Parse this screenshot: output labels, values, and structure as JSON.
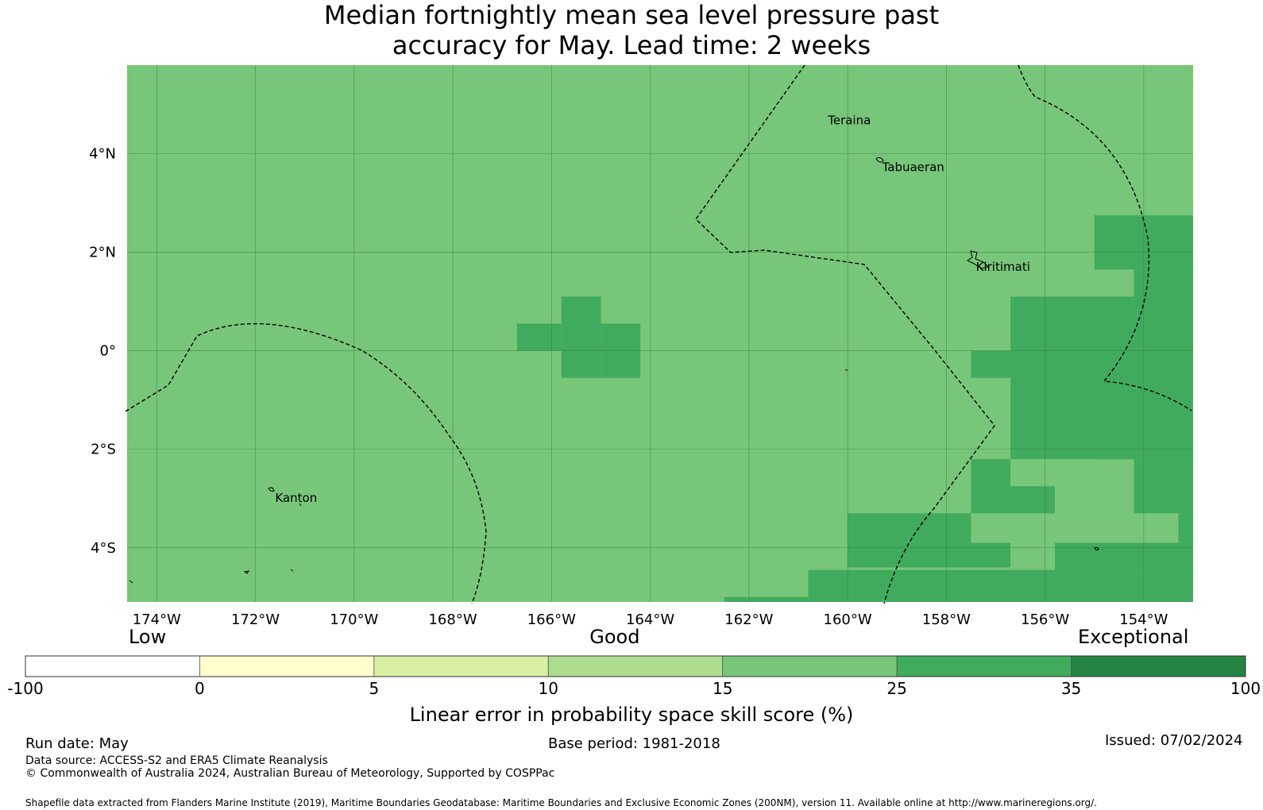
{
  "title": {
    "line1": "Median fortnightly mean sea level pressure past",
    "line2": "accuracy for May. Lead time: 2 weeks"
  },
  "map": {
    "lon_range": [
      -174.6,
      -153.0
    ],
    "lat_range": [
      -5.1,
      5.8
    ],
    "lon_ticks": [
      {
        "value": -174,
        "label": "174°W"
      },
      {
        "value": -172,
        "label": "172°W"
      },
      {
        "value": -170,
        "label": "170°W"
      },
      {
        "value": -168,
        "label": "168°W"
      },
      {
        "value": -166,
        "label": "166°W"
      },
      {
        "value": -164,
        "label": "164°W"
      },
      {
        "value": -162,
        "label": "162°W"
      },
      {
        "value": -160,
        "label": "160°W"
      },
      {
        "value": -158,
        "label": "158°W"
      },
      {
        "value": -156,
        "label": "156°W"
      },
      {
        "value": -154,
        "label": "154°W"
      }
    ],
    "lat_ticks": [
      {
        "value": 4,
        "label": "4°N"
      },
      {
        "value": 2,
        "label": "2°N"
      },
      {
        "value": 0,
        "label": "0°"
      },
      {
        "value": -2,
        "label": "2°S"
      },
      {
        "value": -4,
        "label": "4°S"
      }
    ],
    "background_color": "#78c679",
    "places": [
      {
        "name": "Teraina",
        "lon": -160.4,
        "lat": 4.6
      },
      {
        "name": "Tabuaeran",
        "lon": -159.3,
        "lat": 3.65
      },
      {
        "name": "Kiritimati",
        "lon": -157.4,
        "lat": 1.62
      },
      {
        "name": "Kanton",
        "lon": -171.6,
        "lat": -3.07
      }
    ],
    "high_skill_cells": [
      {
        "lon": [
          -166.7,
          -165.8
        ],
        "lat": [
          0.0,
          0.55
        ],
        "color": "#41ab5d"
      },
      {
        "lon": [
          -165.8,
          -165.0
        ],
        "lat": [
          -0.55,
          1.1
        ],
        "color": "#41ab5d"
      },
      {
        "lon": [
          -165.0,
          -164.2
        ],
        "lat": [
          -0.55,
          0.55
        ],
        "color": "#41ab5d"
      },
      {
        "lon": [
          -155.0,
          -153.0
        ],
        "lat": [
          1.65,
          2.75
        ],
        "color": "#41ab5d"
      },
      {
        "lon": [
          -154.2,
          -153.0
        ],
        "lat": [
          -2.2,
          1.65
        ],
        "color": "#41ab5d"
      },
      {
        "lon": [
          -156.7,
          -154.2
        ],
        "lat": [
          -2.2,
          1.1
        ],
        "color": "#41ab5d"
      },
      {
        "lon": [
          -157.5,
          -156.7
        ],
        "lat": [
          -0.55,
          0.0
        ],
        "color": "#41ab5d"
      },
      {
        "lon": [
          -155.0,
          -154.2
        ],
        "lat": [
          -2.2,
          -1.65
        ],
        "color": "#41ab5d"
      },
      {
        "lon": [
          -154.2,
          -153.0
        ],
        "lat": [
          -3.3,
          -2.2
        ],
        "color": "#41ab5d"
      },
      {
        "lon": [
          -153.3,
          -153.0
        ],
        "lat": [
          -3.9,
          -3.3
        ],
        "color": "#41ab5d"
      },
      {
        "lon": [
          -157.5,
          -156.7
        ],
        "lat": [
          -3.3,
          -2.2
        ],
        "color": "#41ab5d"
      },
      {
        "lon": [
          -156.7,
          -155.8
        ],
        "lat": [
          -3.3,
          -2.75
        ],
        "color": "#41ab5d"
      },
      {
        "lon": [
          -160.0,
          -157.5
        ],
        "lat": [
          -3.9,
          -3.3
        ],
        "color": "#41ab5d"
      },
      {
        "lon": [
          -160.0,
          -156.7
        ],
        "lat": [
          -4.4,
          -3.9
        ],
        "color": "#41ab5d"
      },
      {
        "lon": [
          -160.8,
          -153.0
        ],
        "lat": [
          -5.1,
          -4.45
        ],
        "color": "#41ab5d"
      },
      {
        "lon": [
          -155.8,
          -154.2
        ],
        "lat": [
          -4.45,
          -3.9
        ],
        "color": "#41ab5d"
      },
      {
        "lon": [
          -154.2,
          -153.0
        ],
        "lat": [
          -4.45,
          -3.9
        ],
        "color": "#41ab5d"
      },
      {
        "lon": [
          -162.5,
          -160.8
        ],
        "lat": [
          -5.1,
          -5.0
        ],
        "color": "#41ab5d"
      }
    ]
  },
  "colorbar": {
    "category_labels": [
      {
        "text": "Low",
        "position": 10
      },
      {
        "text": "Good",
        "position": 48.3
      },
      {
        "text": "Exceptional",
        "position": 90.8
      }
    ],
    "segments": [
      {
        "from": -100,
        "to": 0,
        "color": "#ffffff"
      },
      {
        "from": 0,
        "to": 5,
        "color": "#ffffcc"
      },
      {
        "from": 5,
        "to": 10,
        "color": "#d9f0a3"
      },
      {
        "from": 10,
        "to": 15,
        "color": "#addd8e"
      },
      {
        "from": 15,
        "to": 25,
        "color": "#78c679"
      },
      {
        "from": 25,
        "to": 35,
        "color": "#41ab5d"
      },
      {
        "from": 35,
        "to": 100,
        "color": "#238443"
      }
    ],
    "ticks": [
      "-100",
      "0",
      "5",
      "10",
      "15",
      "25",
      "35",
      "100"
    ],
    "label": "Linear error in probability space skill score (%)"
  },
  "footer": {
    "run_date": "Run date: May",
    "base_period": "Base period: 1981-2018",
    "issued": "Issued: 07/02/2024",
    "data_source": "Data source: ACCESS-S2 and ERA5 Climate Reanalysis",
    "copyright": "© Commonwealth of Australia 2024, Australian Bureau of Meteorology, Supported by COSPPac",
    "shapefile": "Shapefile data extracted from Flanders Marine Institute (2019), Maritime Boundaries Geodatabase: Maritime Boundaries and Exclusive Economic Zones (200NM), version 11. Available online at http://www.marineregions.org/."
  }
}
